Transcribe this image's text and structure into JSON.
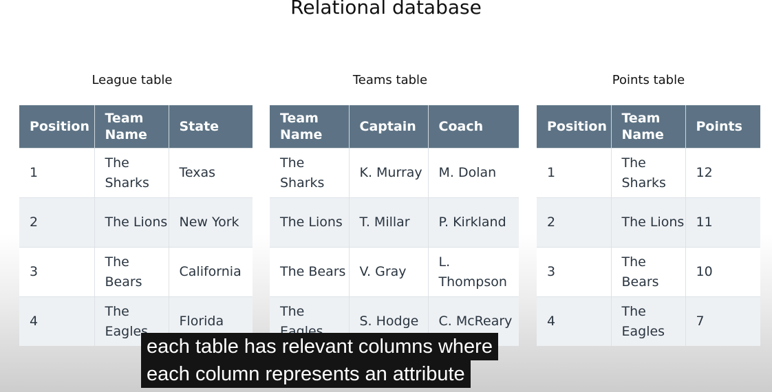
{
  "title": "Relational database",
  "tables": [
    {
      "caption": "League table",
      "headers": [
        "Position",
        "Team Name",
        "State"
      ],
      "rows": [
        [
          "1",
          "The Sharks",
          "Texas"
        ],
        [
          "2",
          "The Lions",
          "New York"
        ],
        [
          "3",
          "The Bears",
          "California"
        ],
        [
          "4",
          "The Eagles",
          "Florida"
        ]
      ]
    },
    {
      "caption": "Teams table",
      "headers": [
        "Team Name",
        "Captain",
        "Coach"
      ],
      "rows": [
        [
          "The Sharks",
          "K. Murray",
          "M. Dolan"
        ],
        [
          "The Lions",
          "T. Millar",
          "P. Kirkland"
        ],
        [
          "The Bears",
          "V. Gray",
          "L. Thompson"
        ],
        [
          "The Eagles",
          "S. Hodge",
          "C. McReary"
        ]
      ]
    },
    {
      "caption": "Points table",
      "headers": [
        "Position",
        "Team Name",
        "Points"
      ],
      "rows": [
        [
          "1",
          "The Sharks",
          "12"
        ],
        [
          "2",
          "The Lions",
          "11"
        ],
        [
          "3",
          "The Bears",
          "10"
        ],
        [
          "4",
          "The Eagles",
          "7"
        ]
      ]
    }
  ],
  "subtitles": {
    "line1": "each table has relevant columns where",
    "line2": "each column represents an attribute"
  }
}
